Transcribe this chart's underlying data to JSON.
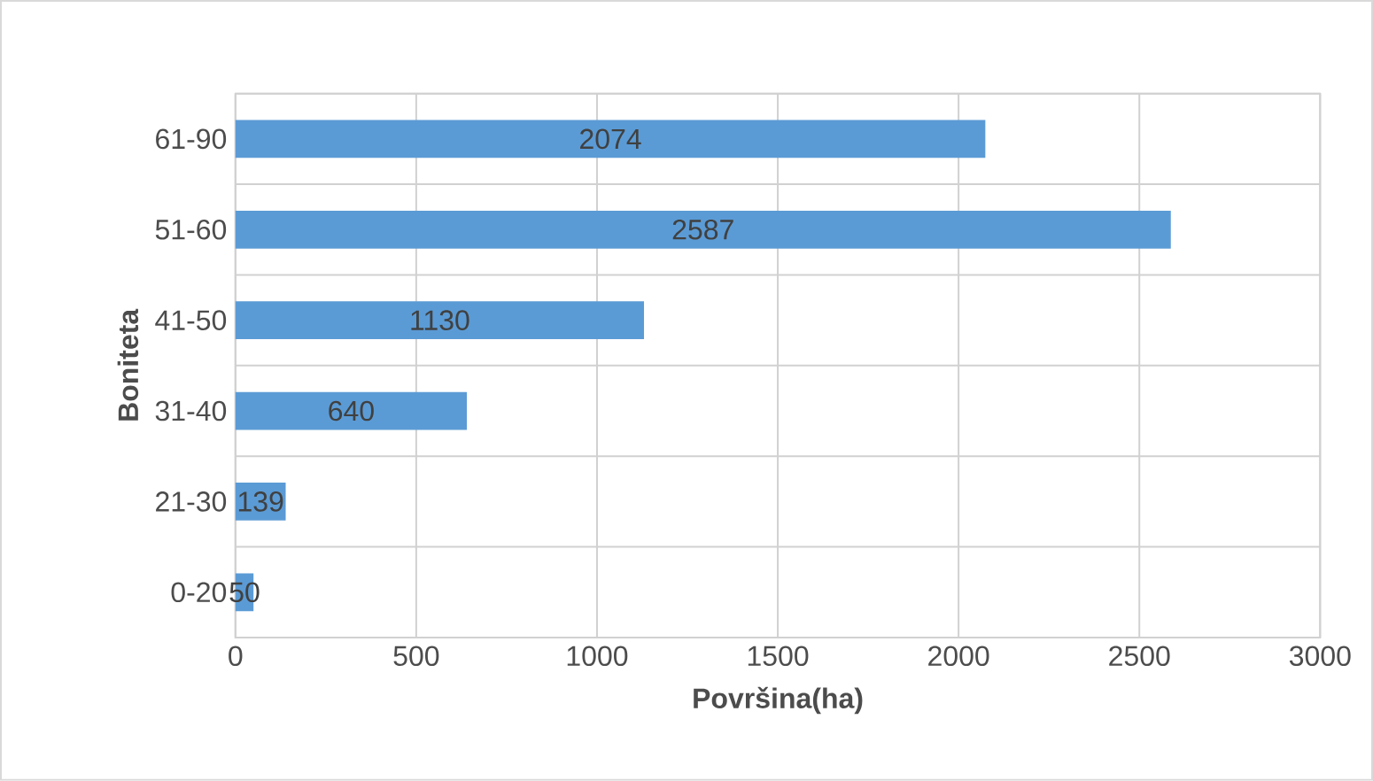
{
  "chart_data": {
    "type": "bar",
    "orientation": "horizontal",
    "categories": [
      "61-90",
      "51-60",
      "41-50",
      "31-40",
      "21-30",
      "0-20"
    ],
    "values": [
      2074,
      2587,
      1130,
      640,
      139,
      50
    ],
    "color": "#5b9bd5",
    "xlim": [
      0,
      3000
    ],
    "xticks": [
      0,
      500,
      1000,
      1500,
      2000,
      2500,
      3000
    ],
    "xlabel": "Površina(ha)",
    "ylabel": "Boniteta",
    "grid": true,
    "data_labels": true
  }
}
